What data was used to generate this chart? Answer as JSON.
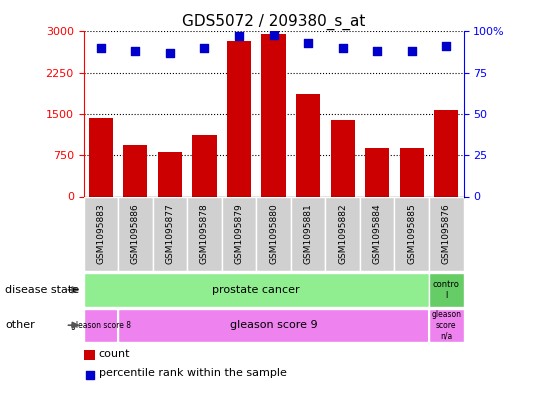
{
  "title": "GDS5072 / 209380_s_at",
  "samples": [
    "GSM1095883",
    "GSM1095886",
    "GSM1095877",
    "GSM1095878",
    "GSM1095879",
    "GSM1095880",
    "GSM1095881",
    "GSM1095882",
    "GSM1095884",
    "GSM1095885",
    "GSM1095876"
  ],
  "counts": [
    1430,
    940,
    810,
    1120,
    2820,
    2950,
    1870,
    1390,
    890,
    880,
    1580
  ],
  "percentile_ranks": [
    90,
    88,
    87,
    90,
    97,
    98,
    93,
    90,
    88,
    88,
    91
  ],
  "bar_color": "#cc0000",
  "dot_color": "#0000cc",
  "ylim_left": [
    0,
    3000
  ],
  "ylim_right": [
    0,
    100
  ],
  "yticks_left": [
    0,
    750,
    1500,
    2250,
    3000
  ],
  "yticks_right": [
    0,
    25,
    50,
    75,
    100
  ],
  "grid_values": [
    750,
    1500,
    2250,
    3000
  ],
  "disease_state_label": "disease state",
  "other_label": "other",
  "legend_count_label": "count",
  "legend_pct_label": "percentile rank within the sample",
  "green_color": "#90ee90",
  "green_dark_color": "#66cc66",
  "pink_color": "#ee82ee",
  "gray_color": "#d0d0d0",
  "fig_width": 5.39,
  "fig_height": 3.93,
  "dpi": 100
}
